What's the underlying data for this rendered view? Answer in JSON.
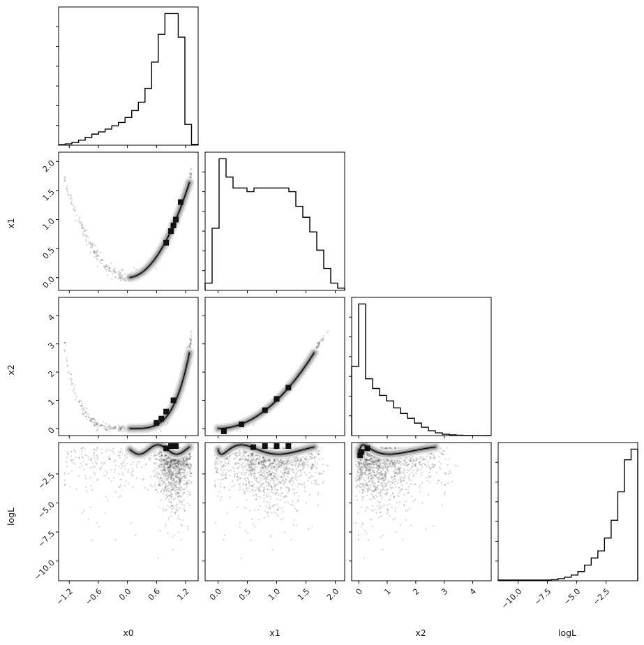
{
  "chart_data": {
    "type": "corner",
    "title": "",
    "parameters": [
      "x0",
      "x1",
      "x2",
      "logL"
    ],
    "ranges": {
      "x0": [
        -1.42,
        1.46
      ],
      "x1": [
        -0.22,
        2.16
      ],
      "x2": [
        -0.25,
        4.65
      ],
      "logL": [
        -11.7,
        0.2
      ]
    },
    "ticks": {
      "x0": [
        -1.2,
        -0.6,
        0.0,
        0.6,
        1.2
      ],
      "x1": [
        0.0,
        0.5,
        1.0,
        1.5,
        2.0
      ],
      "x2": [
        0,
        1,
        2,
        3,
        4
      ],
      "logL": [
        -10.0,
        -7.5,
        -5.0,
        -2.5
      ]
    },
    "tick_labels": {
      "x0": [
        "−1.2",
        "−0.6",
        "0.0",
        "0.6",
        "1.2"
      ],
      "x1": [
        "0.0",
        "0.5",
        "1.0",
        "1.5",
        "2.0"
      ],
      "x2": [
        "0",
        "1",
        "2",
        "3",
        "4"
      ],
      "logL": [
        "−10.0",
        "−7.5",
        "−5.0",
        "−2.5"
      ]
    },
    "axis_labels": {
      "x0": "x0",
      "x1": "x1",
      "x2": "x2",
      "logL": "logL"
    },
    "histograms": {
      "x0": [
        0.2,
        0.5,
        1.0,
        1.8,
        2.8,
        4.0,
        4.8,
        5.8,
        7.0,
        8.2,
        10.0,
        12.5,
        15.5,
        20.5,
        30.0,
        40.0,
        47.5,
        47.5,
        39.0,
        7.5,
        0.3
      ],
      "x1": [
        1.0,
        8.5,
        18.0,
        15.5,
        14.0,
        14.0,
        13.5,
        14.0,
        14.0,
        14.0,
        14.0,
        14.0,
        13.5,
        11.5,
        10.0,
        8.0,
        5.5,
        3.0,
        1.0,
        0.3
      ],
      "x2": [
        10.0,
        19.0,
        8.2,
        6.8,
        5.8,
        5.0,
        4.0,
        3.2,
        2.5,
        1.8,
        1.2,
        0.7,
        0.4,
        0.2,
        0.1,
        0.05,
        0.03,
        0.02,
        0.01,
        0.0
      ],
      "logL": [
        0.1,
        0.1,
        0.1,
        0.1,
        0.1,
        0.1,
        0.1,
        0.1,
        0.15,
        0.3,
        0.5,
        0.8,
        1.3,
        2.2,
        3.2,
        4.2,
        6.0,
        8.5,
        12.5,
        17.0,
        18.5
      ]
    },
    "modes": {
      "x1_vs_x0": [
        [
          0.9,
          0.8
        ],
        [
          1.0,
          1.0
        ],
        [
          1.1,
          1.3
        ],
        [
          0.8,
          0.6
        ],
        [
          0.95,
          0.9
        ]
      ],
      "x2_vs_x0": [
        [
          0.6,
          0.2
        ],
        [
          0.8,
          0.6
        ],
        [
          0.95,
          1.0
        ],
        [
          0.7,
          0.35
        ]
      ],
      "x2_vs_x1": [
        [
          0.1,
          -0.1
        ],
        [
          0.4,
          0.15
        ],
        [
          0.8,
          0.65
        ],
        [
          1.0,
          1.05
        ],
        [
          1.2,
          1.45
        ]
      ],
      "logL_vs_x0": [
        [
          0.9,
          -0.1
        ],
        [
          1.0,
          -0.1
        ],
        [
          0.8,
          -0.3
        ]
      ],
      "logL_vs_x1": [
        [
          0.8,
          -0.1
        ],
        [
          1.0,
          -0.1
        ],
        [
          1.2,
          -0.1
        ],
        [
          0.6,
          -0.2
        ]
      ],
      "logL_vs_x2": [
        [
          0.1,
          -0.6
        ],
        [
          0.3,
          -0.3
        ],
        [
          0.05,
          -0.9
        ]
      ]
    },
    "grid": false,
    "legend": "none"
  }
}
